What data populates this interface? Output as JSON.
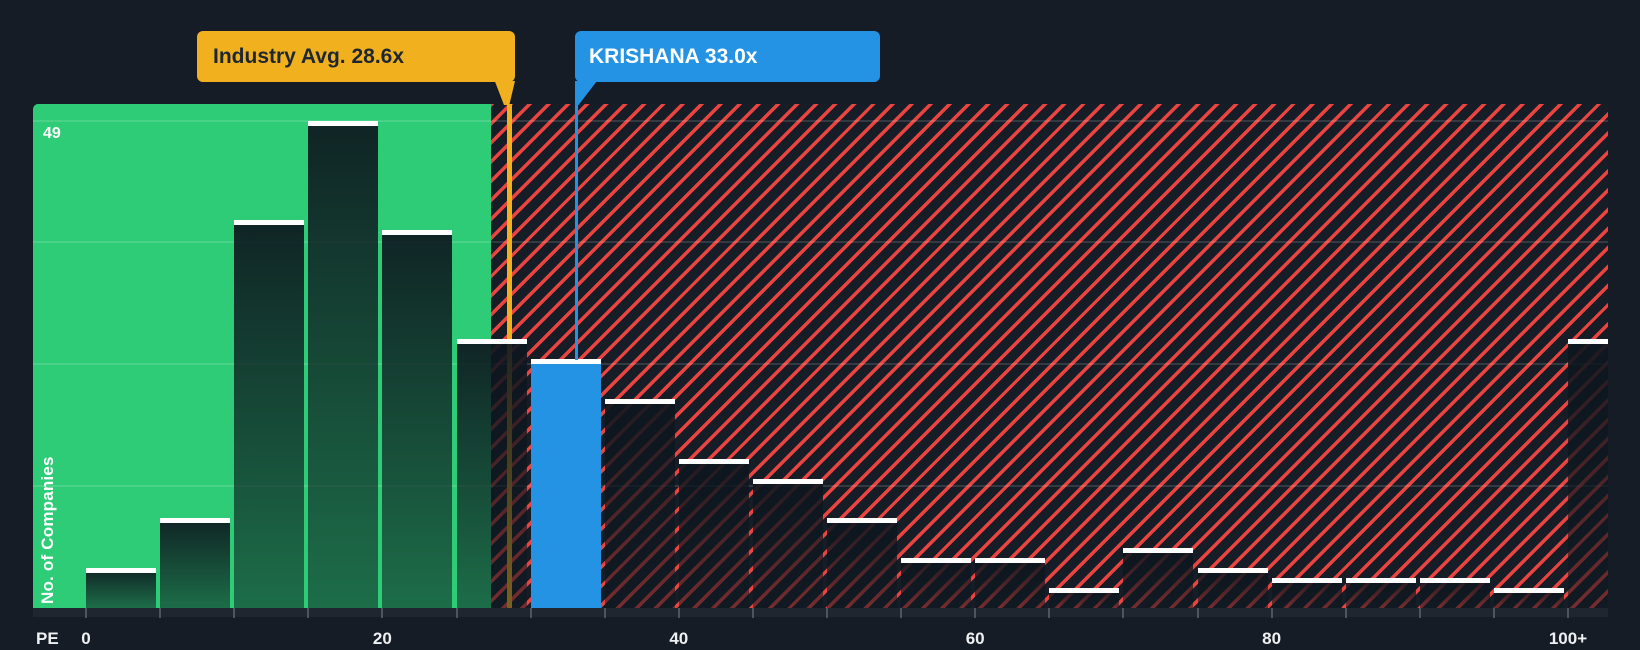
{
  "chart_data": {
    "type": "bar",
    "subtype": "histogram",
    "title": "PE ratio distribution vs industry",
    "xlabel": "PE",
    "ylabel": "No. of Companies",
    "categories": [
      "0-5",
      "5-10",
      "10-15",
      "15-20",
      "20-25",
      "25-30",
      "30-35",
      "35-40",
      "40-45",
      "45-50",
      "50-55",
      "55-60",
      "60-65",
      "65-70",
      "70-75",
      "75-80",
      "80-85",
      "85-90",
      "90-95",
      "95-100",
      "100+"
    ],
    "values": [
      4,
      9,
      39,
      49,
      38,
      27,
      25,
      21,
      15,
      13,
      9,
      5,
      5,
      2,
      6,
      4,
      3,
      3,
      3,
      2,
      27
    ],
    "x_tick_labels": [
      "0",
      "20",
      "40",
      "60",
      "80",
      "100+"
    ],
    "x_tick_step_pe": 5,
    "y_max_label": "49",
    "ylim": [
      0,
      50.6
    ],
    "y_gridline_values": [
      12.25,
      24.5,
      36.75,
      49
    ],
    "grid": "horizontal-quarters, unlabeled",
    "legend": "none",
    "highlight": {
      "category": "30-35",
      "meaning": "company bin",
      "color": "#2593e3"
    },
    "markers": [
      {
        "label": "Industry Avg. 28.6x",
        "value": 28.6,
        "color": "#f1b11f",
        "flag_side": "right-of-line"
      },
      {
        "label": "KRISHANA 33.0x",
        "value": 33.0,
        "color": "#2593e3",
        "flag_side": "left-of-line"
      }
    ],
    "zones": [
      {
        "name": "below-industry-average",
        "range_pe": [
          0,
          27.5
        ],
        "color": "#2ecc77"
      },
      {
        "name": "above-industry-average",
        "range_pe": [
          27.5,
          103
        ],
        "style": "red-diagonal-hatch",
        "color": "#e9443f"
      }
    ]
  },
  "labels": {
    "industry_flag": "Industry Avg. 28.6x",
    "company_flag": "KRISHANA 33.0x",
    "max_count": "49",
    "y_axis": "No. of Companies",
    "x_axis": "PE"
  },
  "colors": {
    "background": "#151c26",
    "green_zone": "#2ecc77",
    "hatch_background": "#161d27",
    "hatch_red": "#e9443f",
    "bar_dark_rgb": "13,22,30",
    "bar_cap": "#ffffff",
    "highlight_blue": "#2593e3",
    "marker_yellow": "#f1b11f",
    "axis_text": "#eef0f2"
  }
}
